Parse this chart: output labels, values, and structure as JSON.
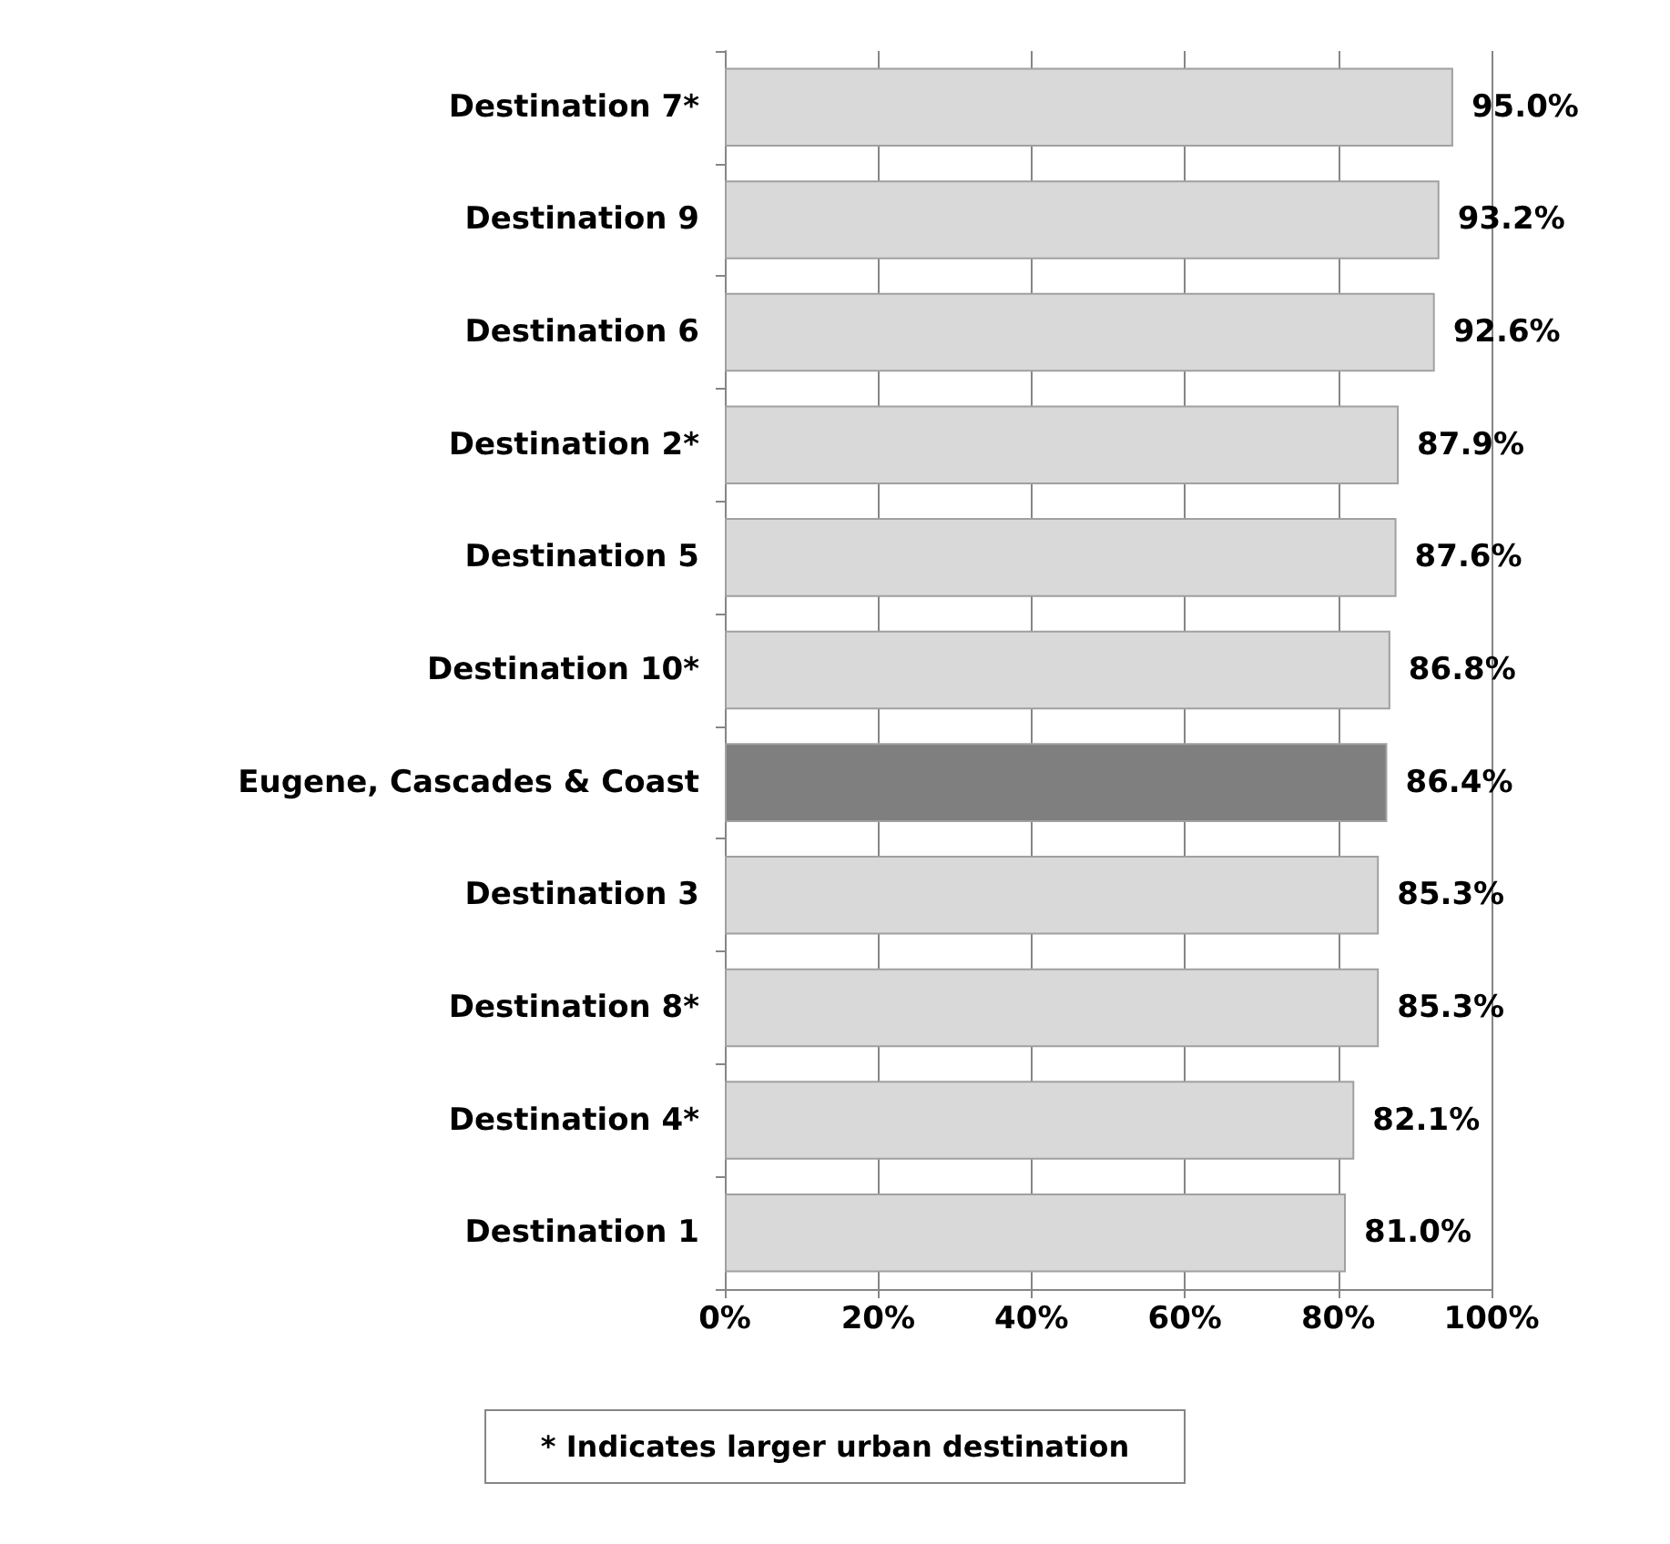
{
  "chart_data": {
    "type": "bar",
    "orientation": "horizontal",
    "categories": [
      "Destination 7*",
      "Destination 9",
      "Destination 6",
      "Destination 2*",
      "Destination 5",
      "Destination 10*",
      "Eugene, Cascades & Coast",
      "Destination 3",
      "Destination 8*",
      "Destination 4*",
      "Destination 1"
    ],
    "values": [
      95.0,
      93.2,
      92.6,
      87.9,
      87.6,
      86.8,
      86.4,
      85.3,
      85.3,
      82.1,
      81.0
    ],
    "value_labels": [
      "95.0%",
      "93.2%",
      "92.6%",
      "87.9%",
      "87.6%",
      "86.8%",
      "86.4%",
      "85.3%",
      "85.3%",
      "82.1%",
      "81.0%"
    ],
    "colors": [
      "#d9d9d9",
      "#d9d9d9",
      "#d9d9d9",
      "#d9d9d9",
      "#d9d9d9",
      "#d9d9d9",
      "#7f7f7f",
      "#d9d9d9",
      "#d9d9d9",
      "#d9d9d9",
      "#d9d9d9"
    ],
    "xlim": [
      0,
      100
    ],
    "xticks": [
      {
        "value": 0,
        "label": "0%"
      },
      {
        "value": 20,
        "label": "20%"
      },
      {
        "value": 40,
        "label": "40%"
      },
      {
        "value": 60,
        "label": "60%"
      },
      {
        "value": 80,
        "label": "80%"
      },
      {
        "value": 100,
        "label": "100%"
      }
    ],
    "grid": "x",
    "annotations": [
      "* Indicates larger urban destination"
    ]
  }
}
